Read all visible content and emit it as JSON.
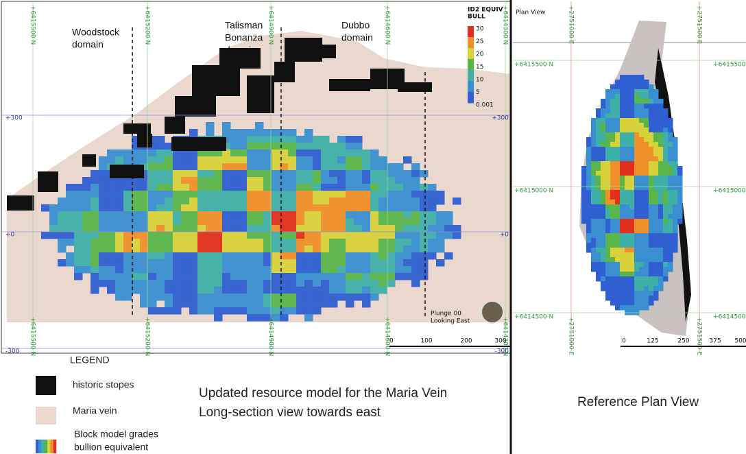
{
  "long_section": {
    "northings": [
      "+6415500 N",
      "+6415200 N",
      "+6414900 N",
      "+6414600 N",
      "+6414300 N"
    ],
    "elevations": [
      "+300",
      "+0",
      "-300"
    ],
    "domains": [
      [
        "Woodstock",
        "domain"
      ],
      [
        "Talisman",
        "Bonanza",
        "domain"
      ],
      [
        "Dubbo",
        "domain"
      ]
    ],
    "grade_legend": {
      "title": [
        "ID2 EQUIV",
        "BULL"
      ],
      "labels": [
        "30",
        "25",
        "20",
        "15",
        "10",
        "5",
        "0.001"
      ]
    },
    "view_note": [
      "Plunge 00",
      "Looking East"
    ],
    "scale_labels": [
      "0",
      "100",
      "200",
      "300"
    ]
  },
  "plan_view": {
    "title": "Plan View",
    "eastings": [
      "+2751000 E",
      "+2751500 E"
    ],
    "northings": [
      "+6415500 N",
      "+6415000 N",
      "+6414500 N"
    ],
    "scale_labels": [
      "0",
      "125",
      "250",
      "375",
      "500"
    ]
  },
  "legend": {
    "title": "LEGEND",
    "items": [
      "historic stopes",
      "Maria vein",
      [
        "Block model grades",
        "bullion equivalent"
      ]
    ]
  },
  "caption": [
    "Updated resource model for the Maria Vein",
    "Long-section view towards east"
  ],
  "plan_caption": "Reference Plan View"
}
